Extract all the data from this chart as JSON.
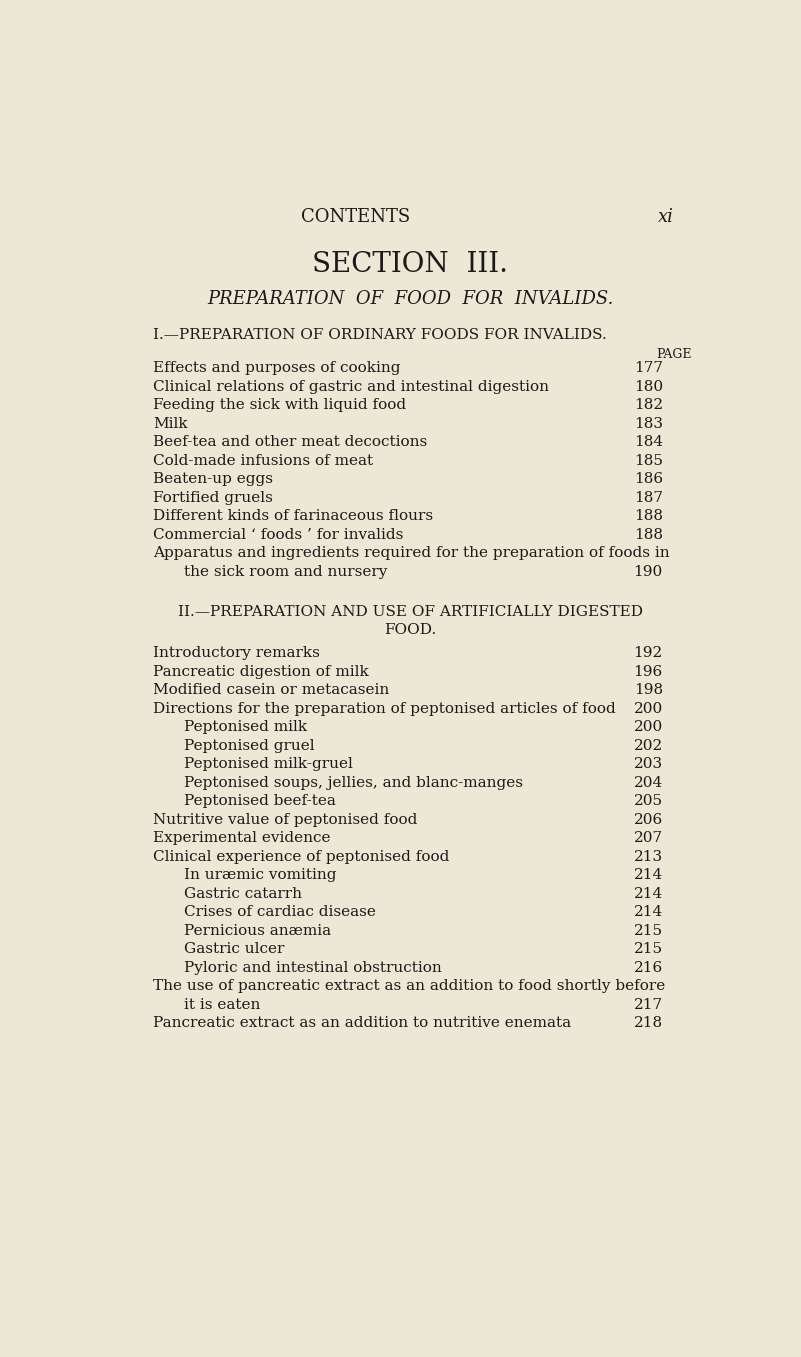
{
  "bg_color": "#EDE8D5",
  "text_color": "#1a1a1a",
  "page_width": 8.01,
  "page_height": 13.57,
  "header_contents": "CONTENTS",
  "header_roman": "xi",
  "section_title": "SECTION  III.",
  "section_subtitle": "PREPARATION  OF  FOOD  FOR  INVALIDS.",
  "part1_heading": "I.—PREPARATION OF ORDINARY FOODS FOR INVALIDS.",
  "page_label": "PAGE",
  "part2_heading_line1": "II.—PREPARATION AND USE OF ARTIFICIALLY DIGESTED",
  "part2_heading_line2": "FOOD.",
  "part1_items": [
    [
      "Effects and purposes of cooking",
      false,
      "177",
      258
    ],
    [
      "Clinical relations of gastric and intestinal digestion",
      false,
      "180",
      282
    ],
    [
      "Feeding the sick with liquid food",
      false,
      "182",
      306
    ],
    [
      "Milk",
      false,
      "183",
      330
    ],
    [
      "Beef-tea and other meat decoctions",
      false,
      "184",
      354
    ],
    [
      "Cold-made infusions of meat",
      false,
      "185",
      378
    ],
    [
      "Beaten-up eggs",
      false,
      "186",
      402
    ],
    [
      "Fortified gruels",
      false,
      "187",
      426
    ],
    [
      "Different kinds of farinaceous flours",
      false,
      "188",
      450
    ],
    [
      "Commercial ‘ foods ’ for invalids",
      false,
      "188",
      474
    ],
    [
      "Apparatus and ingredients required for the preparation of foods in",
      false,
      "",
      498
    ],
    [
      "the sick room and nursery",
      true,
      "190",
      522
    ]
  ],
  "part2_items": [
    [
      "Introductory remarks",
      false,
      "192",
      628
    ],
    [
      "Pancreatic digestion of milk",
      false,
      "196",
      652
    ],
    [
      "Modified casein or metacasein",
      false,
      "198",
      676
    ],
    [
      "Directions for the preparation of peptonised articles of food",
      false,
      "200",
      700
    ],
    [
      "Peptonised milk",
      true,
      "200",
      724
    ],
    [
      "Peptonised gruel",
      true,
      "202",
      748
    ],
    [
      "Peptonised milk-gruel",
      true,
      "203",
      772
    ],
    [
      "Peptonised soups, jellies, and blanc­manges",
      true,
      "204",
      796
    ],
    [
      "Peptonised beef-tea",
      true,
      "205",
      820
    ],
    [
      "Nutritive value of peptonised food",
      false,
      "206",
      844
    ],
    [
      "Experimental evidence",
      false,
      "207",
      868
    ],
    [
      "Clinical experience of peptonised food",
      false,
      "213",
      892
    ],
    [
      "In uræmic vomiting",
      true,
      "214",
      916
    ],
    [
      "Gastric catarrh",
      true,
      "214",
      940
    ],
    [
      "Crises of cardiac disease",
      true,
      "214",
      964
    ],
    [
      "Pernicious anæmia",
      true,
      "215",
      988
    ],
    [
      "Gastric ulcer",
      true,
      "215",
      1012
    ],
    [
      "Pyloric and intestinal obstruction",
      true,
      "216",
      1036
    ],
    [
      "The use of pancreatic extract as an addition to food shortly before",
      false,
      "",
      1060
    ],
    [
      "it is eaten",
      true,
      "217",
      1084
    ],
    [
      "Pancreatic extract as an addition to nutritive enemata",
      false,
      "218",
      1108
    ]
  ]
}
